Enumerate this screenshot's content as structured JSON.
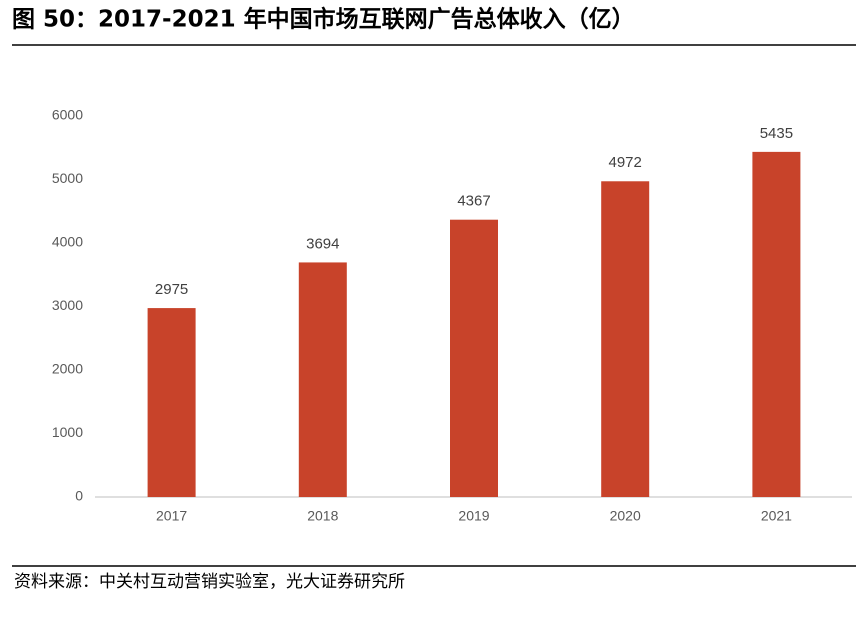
{
  "chart_data": {
    "type": "bar",
    "title": "图 50：2017-2021 年中国市场互联网广告总体收入（亿）",
    "categories": [
      "2017",
      "2018",
      "2019",
      "2020",
      "2021"
    ],
    "values": [
      2975,
      3694,
      4367,
      4972,
      5435
    ],
    "color": "#c8432a",
    "ylim": [
      0,
      6000
    ],
    "yticks": [
      0,
      1000,
      2000,
      3000,
      4000,
      5000,
      6000
    ],
    "grid": false
  },
  "source": "资料来源：中关村互动营销实验室，光大证券研究所"
}
